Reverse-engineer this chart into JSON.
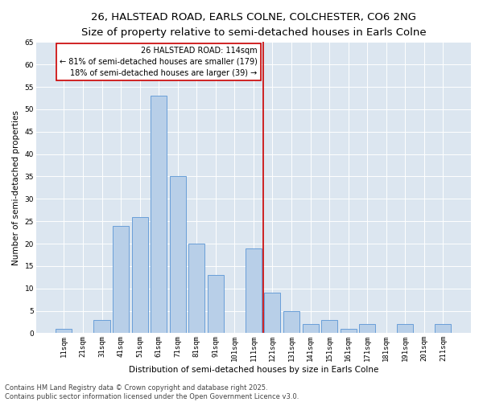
{
  "title_line1": "26, HALSTEAD ROAD, EARLS COLNE, COLCHESTER, CO6 2NG",
  "title_line2": "Size of property relative to semi-detached houses in Earls Colne",
  "xlabel": "Distribution of semi-detached houses by size in Earls Colne",
  "ylabel": "Number of semi-detached properties",
  "categories": [
    "11sqm",
    "21sqm",
    "31sqm",
    "41sqm",
    "51sqm",
    "61sqm",
    "71sqm",
    "81sqm",
    "91sqm",
    "101sqm",
    "111sqm",
    "121sqm",
    "131sqm",
    "141sqm",
    "151sqm",
    "161sqm",
    "171sqm",
    "181sqm",
    "191sqm",
    "201sqm",
    "211sqm"
  ],
  "values": [
    1,
    0,
    3,
    24,
    26,
    53,
    35,
    20,
    13,
    0,
    19,
    9,
    5,
    2,
    3,
    1,
    2,
    0,
    2,
    0,
    2
  ],
  "bar_color": "#b8cfe8",
  "bar_edge_color": "#6a9fd8",
  "vline_x": 10.5,
  "vline_color": "#cc0000",
  "annotation_title": "26 HALSTEAD ROAD: 114sqm",
  "annotation_line1": "← 81% of semi-detached houses are smaller (179)",
  "annotation_line2": "18% of semi-detached houses are larger (39) →",
  "annotation_box_color": "#cc0000",
  "ylim": [
    0,
    65
  ],
  "yticks": [
    0,
    5,
    10,
    15,
    20,
    25,
    30,
    35,
    40,
    45,
    50,
    55,
    60,
    65
  ],
  "background_color": "#dce6f0",
  "footer_line1": "Contains HM Land Registry data © Crown copyright and database right 2025.",
  "footer_line2": "Contains public sector information licensed under the Open Government Licence v3.0.",
  "title_fontsize": 9.5,
  "subtitle_fontsize": 8.5,
  "axis_label_fontsize": 7.5,
  "tick_fontsize": 6.5,
  "annotation_fontsize": 7,
  "footer_fontsize": 6
}
